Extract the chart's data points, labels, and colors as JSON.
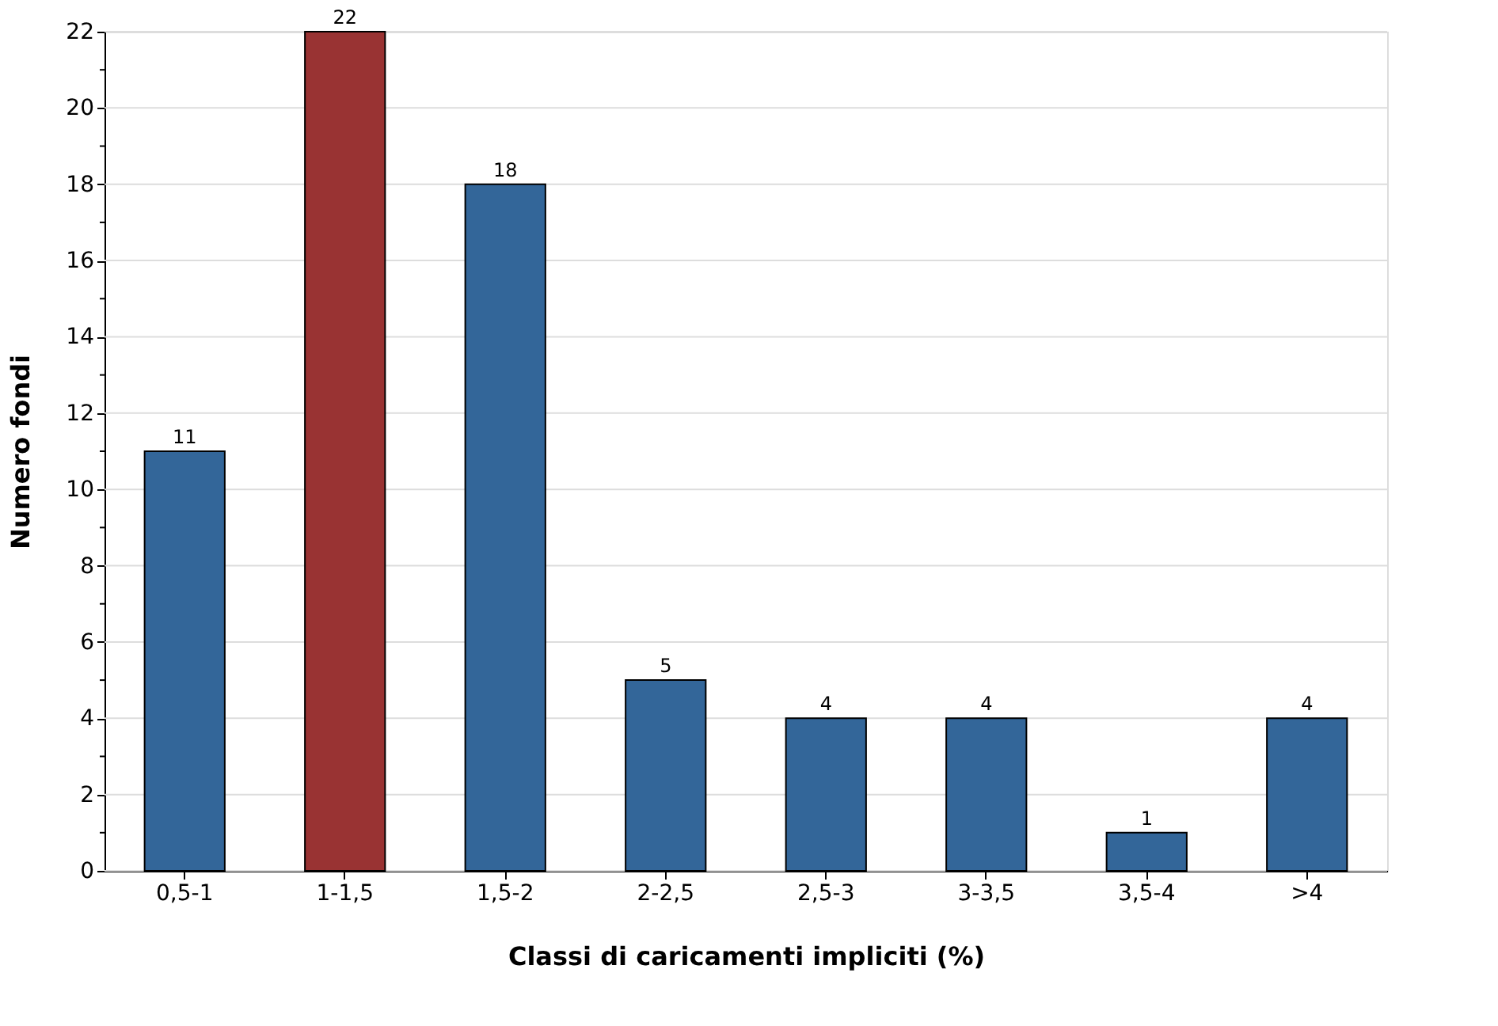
{
  "chart_data": {
    "type": "bar",
    "xlabel": "Classi di caricamenti impliciti (%)",
    "ylabel": "Numero fondi",
    "categories": [
      "0,5-1",
      "1-1,5",
      "1,5-2",
      "2-2,5",
      "2,5-3",
      "3-3,5",
      "3,5-4",
      ">4"
    ],
    "values": [
      11,
      22,
      18,
      5,
      4,
      4,
      1,
      4
    ],
    "colors": [
      "#336699",
      "#993333",
      "#336699",
      "#336699",
      "#336699",
      "#336699",
      "#336699",
      "#336699"
    ],
    "ylim": [
      0,
      22
    ],
    "yticks": [
      0,
      {
        "value": 1,
        "label": null
      },
      2,
      {
        "value": 3,
        "label": null
      },
      4,
      {
        "value": 5,
        "label": null
      },
      6,
      {
        "value": 7,
        "label": null
      },
      8,
      {
        "value": 9,
        "label": null
      },
      10,
      {
        "value": 11,
        "label": null
      },
      12,
      {
        "value": 13,
        "label": null
      },
      14,
      {
        "value": 15,
        "label": null
      },
      16,
      {
        "value": 17,
        "label": null
      },
      18,
      {
        "value": 19,
        "label": null
      },
      20,
      {
        "value": 21,
        "label": null
      },
      22
    ],
    "grid": "y",
    "data_labels": true
  }
}
